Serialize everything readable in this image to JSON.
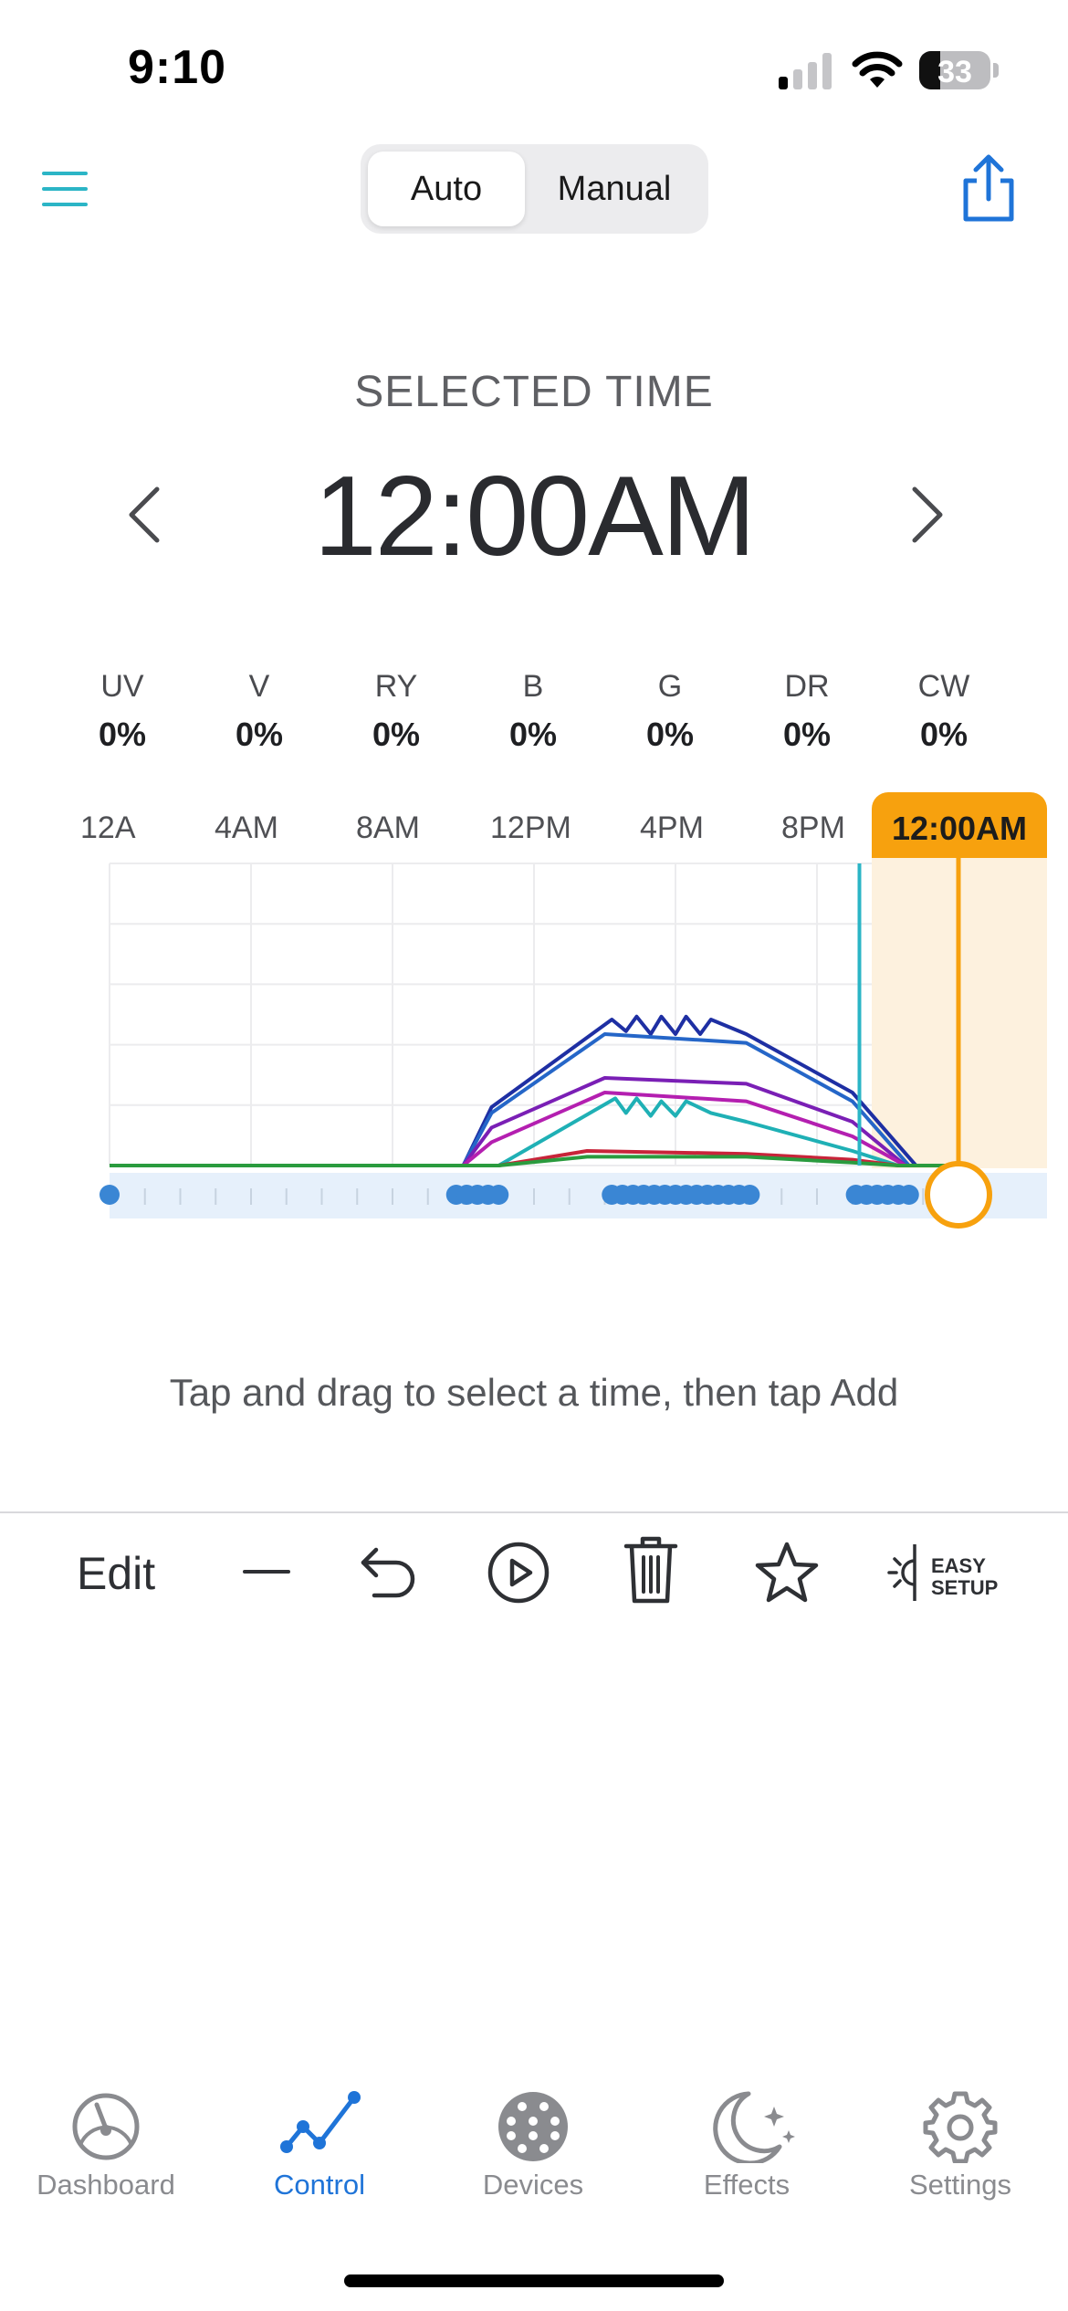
{
  "status_bar": {
    "time": "9:10",
    "battery_percent": "33",
    "signal_bars": 2
  },
  "header": {
    "menu_icon": "hamburger-menu-icon",
    "share_icon": "share-icon"
  },
  "mode_toggle": {
    "auto_label": "Auto",
    "manual_label": "Manual",
    "selected": "Auto"
  },
  "selected_time": {
    "label": "SELECTED TIME",
    "value": "12:00AM"
  },
  "channels": [
    {
      "name": "UV",
      "value": "0%"
    },
    {
      "name": "V",
      "value": "0%"
    },
    {
      "name": "RY",
      "value": "0%"
    },
    {
      "name": "B",
      "value": "0%"
    },
    {
      "name": "G",
      "value": "0%"
    },
    {
      "name": "DR",
      "value": "0%"
    },
    {
      "name": "CW",
      "value": "0%"
    }
  ],
  "timeline": {
    "ticks": [
      "12A",
      "4AM",
      "8AM",
      "12PM",
      "4PM",
      "8PM"
    ],
    "current_badge": "12:00AM"
  },
  "chart_data": {
    "type": "line",
    "x_unit": "hour of day",
    "xlim": [
      0,
      24
    ],
    "ylim": [
      0,
      100
    ],
    "current_marker_hour": 24,
    "now_marker_hour": 21.2,
    "series": [
      {
        "color": "#1e2fa3",
        "points": [
          [
            0,
            0
          ],
          [
            10,
            0
          ],
          [
            10.8,
            20
          ],
          [
            14.2,
            50
          ],
          [
            14.6,
            46
          ],
          [
            14.9,
            51
          ],
          [
            15.3,
            45
          ],
          [
            15.6,
            51
          ],
          [
            16,
            45
          ],
          [
            16.3,
            51
          ],
          [
            16.7,
            45
          ],
          [
            17,
            50
          ],
          [
            18,
            45
          ],
          [
            21,
            25
          ],
          [
            22.8,
            0
          ],
          [
            24,
            0
          ]
        ]
      },
      {
        "color": "#2566c8",
        "points": [
          [
            0,
            0
          ],
          [
            10,
            0
          ],
          [
            10.8,
            18
          ],
          [
            14,
            45
          ],
          [
            18,
            42
          ],
          [
            21,
            22
          ],
          [
            22.6,
            0
          ],
          [
            24,
            0
          ]
        ]
      },
      {
        "color": "#7a1fb5",
        "points": [
          [
            0,
            0
          ],
          [
            10,
            0
          ],
          [
            10.8,
            13
          ],
          [
            14,
            30
          ],
          [
            18,
            28
          ],
          [
            21,
            15
          ],
          [
            22.5,
            0
          ],
          [
            24,
            0
          ]
        ]
      },
      {
        "color": "#b41fb0",
        "points": [
          [
            0,
            0
          ],
          [
            10,
            0
          ],
          [
            10.8,
            8
          ],
          [
            14,
            25
          ],
          [
            18,
            22
          ],
          [
            21,
            10
          ],
          [
            22.5,
            0
          ],
          [
            24,
            0
          ]
        ]
      },
      {
        "color": "#1fb0b5",
        "points": [
          [
            0,
            0
          ],
          [
            11,
            0
          ],
          [
            14.3,
            23
          ],
          [
            14.6,
            18
          ],
          [
            14.9,
            23
          ],
          [
            15.3,
            17
          ],
          [
            15.6,
            22
          ],
          [
            16,
            17
          ],
          [
            16.3,
            22
          ],
          [
            17,
            18
          ],
          [
            18,
            15
          ],
          [
            21,
            5
          ],
          [
            22.3,
            0
          ],
          [
            24,
            0
          ]
        ]
      },
      {
        "color": "#c8243a",
        "points": [
          [
            0,
            0
          ],
          [
            11,
            0
          ],
          [
            13.5,
            5
          ],
          [
            18,
            4
          ],
          [
            21,
            2
          ],
          [
            22.3,
            0
          ],
          [
            24,
            0
          ]
        ]
      },
      {
        "color": "#2a9b3e",
        "points": [
          [
            0,
            0
          ],
          [
            11,
            0
          ],
          [
            13.5,
            3
          ],
          [
            18,
            3
          ],
          [
            21,
            1
          ],
          [
            22.3,
            0
          ],
          [
            24,
            0
          ]
        ]
      }
    ],
    "keyframe_hours": [
      0,
      9.8,
      10.1,
      10.4,
      10.7,
      11.0,
      14.2,
      14.5,
      14.8,
      15.1,
      15.4,
      15.7,
      16.0,
      16.3,
      16.6,
      16.9,
      17.2,
      17.5,
      17.8,
      18.1,
      21.1,
      21.4,
      21.7,
      22.0,
      22.3,
      22.6
    ]
  },
  "hint": "Tap and drag to select a time, then tap Add",
  "toolbar": {
    "edit_label": "Edit",
    "easy_setup_line1": "EASY",
    "easy_setup_line2": "SETUP"
  },
  "tabs": [
    {
      "label": "Dashboard",
      "icon": "gauge-icon",
      "active": false
    },
    {
      "label": "Control",
      "icon": "line-chart-icon",
      "active": true
    },
    {
      "label": "Devices",
      "icon": "led-grid-icon",
      "active": false
    },
    {
      "label": "Effects",
      "icon": "moon-stars-icon",
      "active": false
    },
    {
      "label": "Settings",
      "icon": "gear-icon",
      "active": false
    }
  ],
  "colors": {
    "accent": "#2bb5c6",
    "brand_blue": "#1f74d8",
    "highlight": "#f7a10e"
  }
}
